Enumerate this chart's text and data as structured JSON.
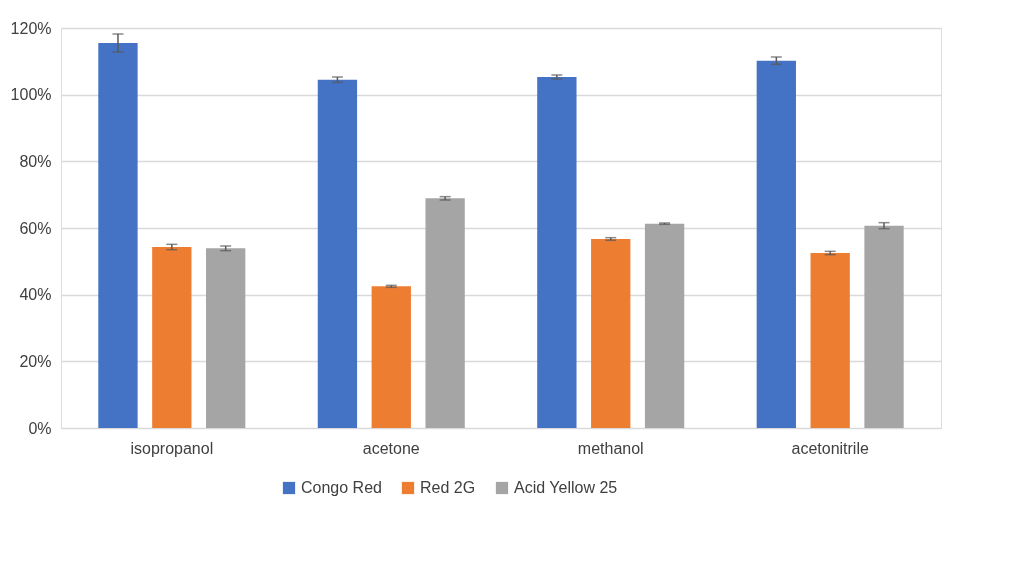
{
  "chart_data": {
    "type": "bar",
    "categories": [
      "isopropanol",
      "acetone",
      "methanol",
      "acetonitrile"
    ],
    "series": [
      {
        "name": "Congo Red",
        "color": "#4472c4",
        "values": [
          115.5,
          104.5,
          105.3,
          110.2
        ],
        "errors": [
          2.7,
          0.8,
          0.6,
          1.1
        ]
      },
      {
        "name": "Red 2G",
        "color": "#ed7d31",
        "values": [
          54.3,
          42.5,
          56.7,
          52.5
        ],
        "errors": [
          0.8,
          0.3,
          0.4,
          0.5
        ]
      },
      {
        "name": "Acid Yellow 25",
        "color": "#a5a5a5",
        "values": [
          53.9,
          68.9,
          61.3,
          60.7
        ],
        "errors": [
          0.7,
          0.5,
          0.2,
          0.9
        ]
      }
    ],
    "ylim": [
      0,
      120
    ],
    "yticks": [
      {
        "value": 0,
        "label": "0%"
      },
      {
        "value": 20,
        "label": "20%"
      },
      {
        "value": 40,
        "label": "40%"
      },
      {
        "value": 60,
        "label": "60%"
      },
      {
        "value": 80,
        "label": "80%"
      },
      {
        "value": 100,
        "label": "100%"
      },
      {
        "value": 120,
        "label": "120%"
      }
    ],
    "grid": "y",
    "legend": "bottom"
  }
}
